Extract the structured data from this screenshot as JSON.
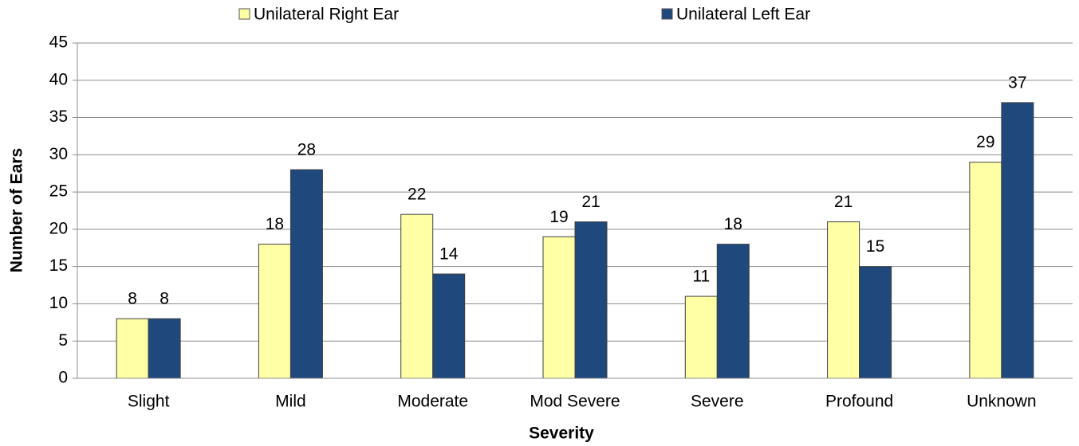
{
  "chart_data": {
    "type": "bar",
    "x_label": "Severity",
    "y_label": "Number of Ears",
    "categories": [
      "Slight",
      "Mild",
      "Moderate",
      "Mod Severe",
      "Severe",
      "Profound",
      "Unknown"
    ],
    "series": [
      {
        "name": "Unilateral Right Ear",
        "color": "#ffffa6",
        "values": [
          8,
          18,
          22,
          19,
          11,
          21,
          29
        ]
      },
      {
        "name": "Unilateral Left Ear",
        "color": "#1f497d",
        "values": [
          8,
          28,
          14,
          21,
          18,
          15,
          37
        ]
      }
    ],
    "ylim": [
      0,
      45
    ],
    "yticks": [
      0,
      5,
      10,
      15,
      20,
      25,
      30,
      35,
      40,
      45
    ],
    "grid": true,
    "legend": "top"
  }
}
